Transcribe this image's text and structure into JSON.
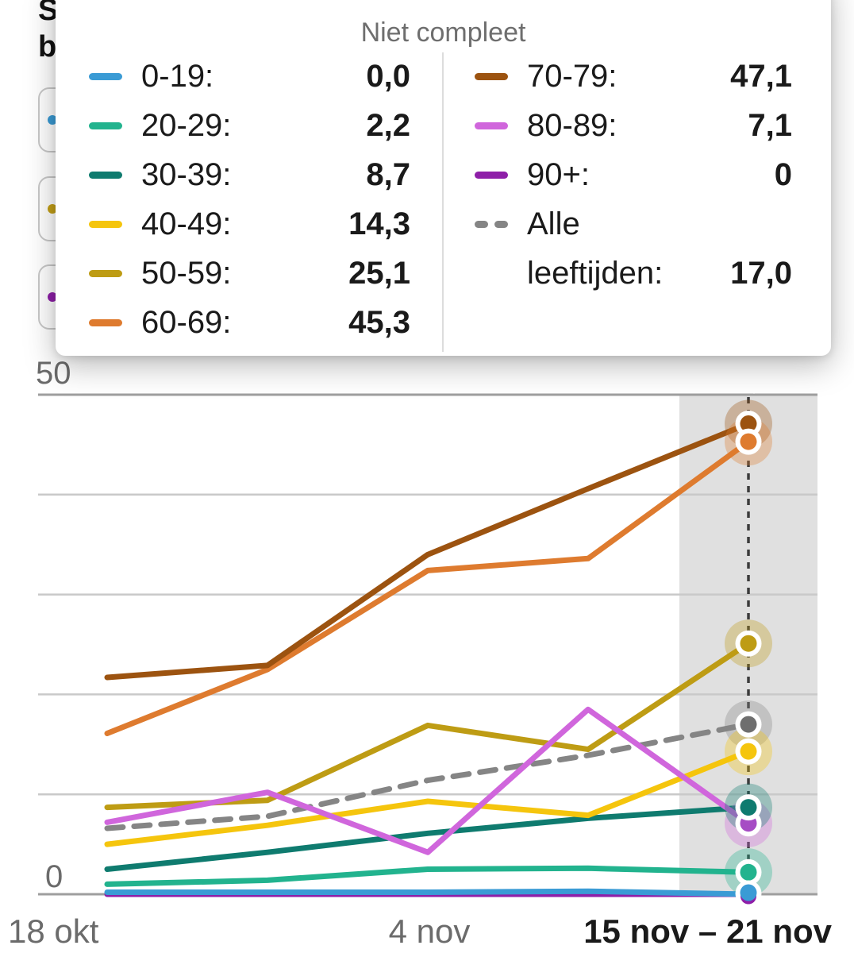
{
  "page": {
    "title_fragment_line1": "S",
    "title_fragment_line2": "b"
  },
  "filter_chips": [
    {
      "name": "chip-1",
      "dot_color": "#3A9BD5"
    },
    {
      "name": "chip-2",
      "dot_color": "#C4A017"
    },
    {
      "name": "chip-3",
      "dot_color": "#8E1FA8"
    }
  ],
  "tooltip": {
    "title": "Niet compleet",
    "left_column": [
      {
        "label": "0-19:",
        "value": "0,0",
        "color": "#3A9BD5"
      },
      {
        "label": "20-29:",
        "value": "2,2",
        "color": "#22B38E"
      },
      {
        "label": "30-39:",
        "value": "8,7",
        "color": "#0F7B6F"
      },
      {
        "label": "40-49:",
        "value": "14,3",
        "color": "#F5C50D"
      },
      {
        "label": "50-59:",
        "value": "25,1",
        "color": "#BE9C14"
      },
      {
        "label": "60-69:",
        "value": "45,3",
        "color": "#DE7B2F"
      }
    ],
    "right_column": [
      {
        "label": "70-79:",
        "value": "47,1",
        "color": "#9C5310"
      },
      {
        "label": "80-89:",
        "value": "7,1",
        "color": "#D066DC"
      },
      {
        "label": "90+:",
        "value": "0",
        "color": "#8E1FA8"
      },
      {
        "label_line1": "Alle",
        "label_line2": "leeftijden:",
        "value": "17,0",
        "color": "#858585",
        "dashed": true
      }
    ]
  },
  "chart_data": {
    "type": "line",
    "title": "",
    "xlabel": "",
    "ylabel": "",
    "ylim": [
      0,
      50
    ],
    "grid": true,
    "y_tick_labels": [
      "50",
      "0"
    ],
    "x_tick_labels": [
      "18 okt",
      "4 nov",
      "15 nov – 21 nov"
    ],
    "highlighted_period": "15 nov – 21 nov",
    "x_points_per_series": 5,
    "series": [
      {
        "name": "0-19",
        "color": "#3A9BD5",
        "values": [
          0.2,
          0.2,
          0.2,
          0.3,
          0.0
        ],
        "final_display": "0,0"
      },
      {
        "name": "20-29",
        "color": "#22B38E",
        "values": [
          1.0,
          1.4,
          2.5,
          2.6,
          2.2
        ],
        "final_display": "2,2"
      },
      {
        "name": "30-39",
        "color": "#0F7B6F",
        "values": [
          2.5,
          4.2,
          6.1,
          7.6,
          8.7
        ],
        "final_display": "8,7"
      },
      {
        "name": "40-49",
        "color": "#F5C50D",
        "values": [
          5.0,
          6.9,
          9.3,
          7.9,
          14.3
        ],
        "final_display": "14,3"
      },
      {
        "name": "50-59",
        "color": "#BE9C14",
        "values": [
          8.7,
          9.4,
          16.9,
          14.5,
          25.1
        ],
        "final_display": "25,1"
      },
      {
        "name": "60-69",
        "color": "#DE7B2F",
        "values": [
          16.1,
          22.5,
          32.4,
          33.6,
          45.3
        ],
        "final_display": "45,3"
      },
      {
        "name": "70-79",
        "color": "#9C5310",
        "values": [
          21.7,
          22.9,
          34.0,
          40.6,
          47.1
        ],
        "final_display": "47,1"
      },
      {
        "name": "80-89",
        "color": "#D066DC",
        "values": [
          7.2,
          10.2,
          4.2,
          18.5,
          7.1
        ],
        "dot_color": "#A64CC4",
        "final_display": "7,1"
      },
      {
        "name": "90+",
        "color": "#8E1FA8",
        "values": [
          0,
          0,
          0,
          0,
          0
        ],
        "final_display": "0"
      },
      {
        "name": "Alle leeftijden",
        "color": "#858585",
        "values": [
          6.6,
          7.8,
          11.4,
          13.9,
          17.0
        ],
        "dashed": true,
        "dot_color": "#6E6E6E",
        "final_display": "17,0"
      }
    ],
    "colors": {
      "band": "#E0E0E0",
      "grid_major": "#9E9E9E",
      "grid_minor": "#C9C9C9",
      "cursor_line": "#3C3C3C",
      "axis_text": "#6B6B6B",
      "axis_text_selected": "#1A1A1A"
    }
  }
}
